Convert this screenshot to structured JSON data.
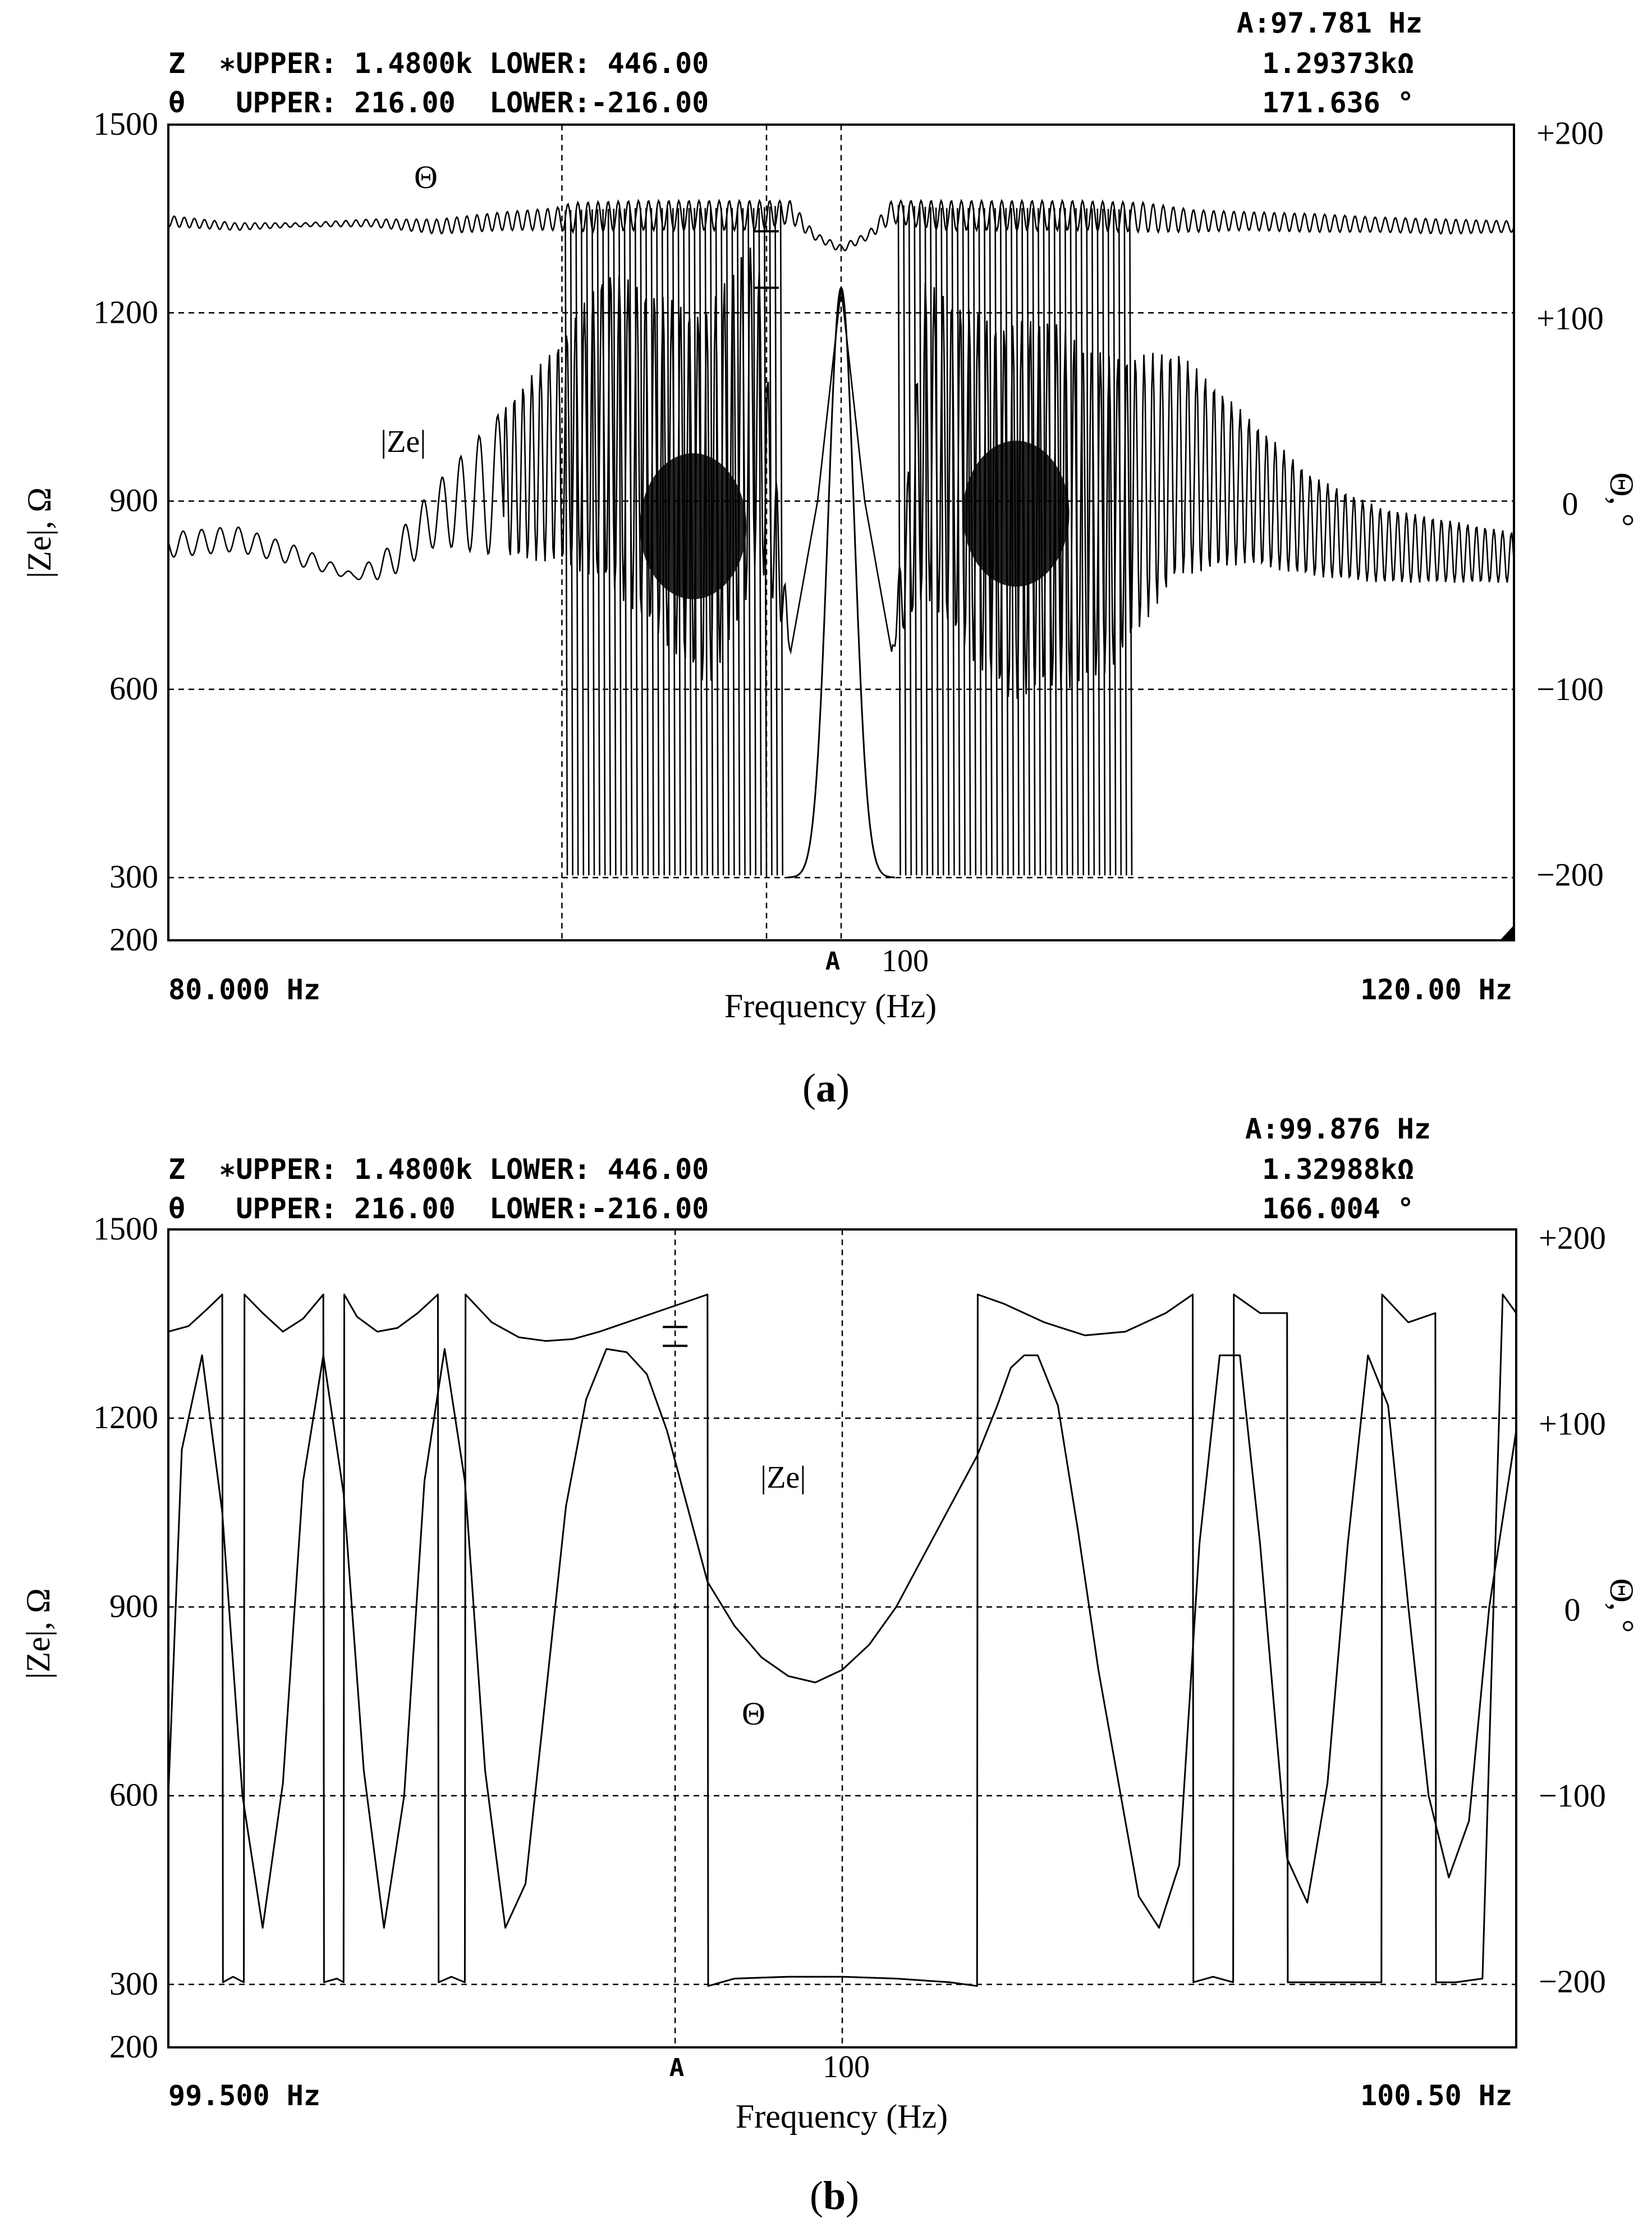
{
  "figure": {
    "panels": [
      {
        "caption_letter": "a",
        "cursor_readout": "A:97.781 Hz",
        "z_header": "Z  ∗UPPER: 1.4800k LOWER: 446.00",
        "z_value": "1.29373kΩ",
        "theta_header": "θ   UPPER: 216.00  LOWER:-216.00",
        "theta_value": "171.636 °",
        "x_start_label": "80.000 Hz",
        "x_end_label": "120.00 Hz",
        "x_center_label": "100",
        "cursor_marker": "A",
        "xlabel": "Frequency (Hz)",
        "ylabel_left": "|Ze|, Ω",
        "ylabel_right": "Θ, °",
        "trace_label_ze": "|Ze|",
        "trace_label_theta": "Θ"
      },
      {
        "caption_letter": "b",
        "cursor_readout": "A:99.876 Hz",
        "z_header": "Z  ∗UPPER: 1.4800k LOWER: 446.00",
        "z_value": "1.32988kΩ",
        "theta_header": "θ   UPPER: 216.00  LOWER:-216.00",
        "theta_value": "166.004 °",
        "x_start_label": "99.500 Hz",
        "x_end_label": "100.50 Hz",
        "x_center_label": "100",
        "cursor_marker": "A",
        "xlabel": "Frequency (Hz)",
        "ylabel_left": "|Ze|, Ω",
        "ylabel_right": "Θ, °",
        "trace_label_ze": "|Ze|",
        "trace_label_theta": "Θ"
      }
    ]
  },
  "chart_data": [
    {
      "type": "line",
      "xlim": [
        80,
        120
      ],
      "ylim_left": [
        200,
        1500
      ],
      "ylim_right": [
        -235,
        205
      ],
      "left_ticks": [
        1500,
        1200,
        900,
        600,
        300,
        200
      ],
      "left_tick_labels": [
        "1500",
        "1200",
        "900",
        "600",
        "300",
        "200"
      ],
      "right_ticks": [
        200,
        100,
        0,
        -100,
        -200
      ],
      "right_tick_labels": [
        "+200",
        "+100",
        "0",
        "−100",
        "−200"
      ],
      "grid_h": [
        1200,
        900,
        600,
        300
      ],
      "grid_v": [
        91.7,
        97.781,
        100
      ],
      "cursor_x": 97.781,
      "cursor_ticks_y": [
        1330,
        1240
      ],
      "grid": true,
      "series": [
        {
          "name": "Θ",
          "axis": "right",
          "x": [
            80,
            82,
            84,
            86,
            88,
            90,
            91.5,
            92,
            94,
            96,
            97.5,
            98.5,
            99.2,
            100,
            100.8,
            101.5,
            103,
            105,
            107,
            109,
            110.5,
            112,
            114,
            116,
            118,
            120
          ],
          "y": [
            153,
            150,
            151,
            152,
            150,
            153,
            154,
            155,
            156,
            156,
            156,
            158,
            145,
            138,
            145,
            158,
            156,
            156,
            156,
            155,
            153,
            153,
            152,
            151,
            150,
            150
          ],
          "oscillation_amp_deg": [
            3,
            2,
            1,
            2,
            4,
            5,
            6,
            8,
            8,
            8,
            8,
            6,
            2,
            2,
            2,
            6,
            8,
            8,
            8,
            8,
            6,
            5,
            5,
            4,
            4,
            3
          ],
          "fall_to_deg": [
            null,
            null,
            null,
            null,
            null,
            null,
            null,
            -200,
            -200,
            -200,
            -200,
            null,
            null,
            null,
            null,
            null,
            -200,
            -200,
            -200,
            -200,
            null,
            null,
            null,
            null,
            null,
            null
          ]
        },
        {
          "name": "|Ze|",
          "axis": "left",
          "x": [
            80,
            82,
            84,
            85.5,
            86.5,
            88,
            90,
            91.7,
            93,
            95,
            96,
            97,
            97.5,
            98.5,
            99.3,
            100,
            100.7,
            101.5,
            102.5,
            104,
            105,
            106,
            107,
            108,
            110,
            112,
            114,
            116,
            118,
            120
          ],
          "y": [
            830,
            840,
            810,
            780,
            800,
            880,
            930,
            980,
            1020,
            940,
            900,
            1000,
            1060,
            660,
            900,
            1240,
            900,
            660,
            1000,
            920,
            880,
            900,
            880,
            880,
            960,
            920,
            860,
            830,
            820,
            810
          ],
          "oscillation_amp_ohm": [
            20,
            20,
            15,
            5,
            25,
            50,
            120,
            180,
            250,
            280,
            300,
            300,
            250,
            0,
            0,
            0,
            0,
            0,
            250,
            280,
            300,
            300,
            280,
            250,
            180,
            120,
            80,
            60,
            50,
            40
          ]
        }
      ]
    },
    {
      "type": "line",
      "xlim": [
        99.5,
        100.5
      ],
      "ylim_left": [
        200,
        1500
      ],
      "ylim_right": [
        -235,
        205
      ],
      "left_ticks": [
        1500,
        1200,
        900,
        600,
        300,
        200
      ],
      "left_tick_labels": [
        "1500",
        "1200",
        "900",
        "600",
        "300",
        "200"
      ],
      "right_ticks": [
        200,
        100,
        0,
        -100,
        -200
      ],
      "right_tick_labels": [
        "+200",
        "+100",
        "0",
        "−100",
        "−200"
      ],
      "grid_h": [
        1200,
        900,
        600,
        300
      ],
      "grid_v": [
        99.876,
        100
      ],
      "cursor_x": 99.876,
      "cursor_ticks_y": [
        1345,
        1315
      ],
      "grid": true,
      "series": [
        {
          "name": "|Ze|",
          "axis": "left",
          "x": [
            99.5,
            99.51,
            99.525,
            99.54,
            99.555,
            99.57,
            99.585,
            99.6,
            99.615,
            99.63,
            99.645,
            99.66,
            99.675,
            99.69,
            99.705,
            99.72,
            99.735,
            99.75,
            99.765,
            99.78,
            99.795,
            99.81,
            99.825,
            99.84,
            99.855,
            99.87,
            99.885,
            99.9,
            99.92,
            99.94,
            99.96,
            99.98,
            100,
            100.02,
            100.04,
            100.06,
            100.08,
            100.1,
            100.115,
            100.125,
            100.135,
            100.145,
            100.16,
            100.175,
            100.19,
            100.205,
            100.22,
            100.235,
            100.25,
            100.265,
            100.28,
            100.295,
            100.31,
            100.33,
            100.345,
            100.36,
            100.375,
            100.39,
            100.405,
            100.42,
            100.435,
            100.45,
            100.465,
            100.48,
            100.5
          ],
          "y": [
            600,
            1150,
            1300,
            1050,
            600,
            390,
            620,
            1100,
            1300,
            1080,
            640,
            390,
            600,
            1100,
            1310,
            1100,
            640,
            390,
            460,
            760,
            1060,
            1230,
            1310,
            1305,
            1270,
            1180,
            1060,
            940,
            870,
            820,
            790,
            780,
            800,
            840,
            900,
            980,
            1060,
            1140,
            1220,
            1280,
            1300,
            1300,
            1220,
            1020,
            800,
            620,
            440,
            390,
            490,
            1000,
            1300,
            1300,
            1000,
            500,
            430,
            620,
            1000,
            1300,
            1220,
            900,
            600,
            470,
            560,
            900,
            1180
          ]
        },
        {
          "name": "Θ",
          "axis": "right",
          "x": [
            99.5,
            99.515,
            99.53,
            99.54,
            99.5405,
            99.548,
            99.556,
            99.5565,
            99.57,
            99.585,
            99.6,
            99.615,
            99.6155,
            99.625,
            99.63,
            99.6305,
            99.64,
            99.655,
            99.67,
            99.685,
            99.7,
            99.7005,
            99.71,
            99.72,
            99.7205,
            99.74,
            99.76,
            99.78,
            99.8,
            99.82,
            99.84,
            99.86,
            99.88,
            99.9,
            99.9005,
            99.92,
            99.96,
            100,
            100.04,
            100.08,
            100.1,
            100.1005,
            100.12,
            100.15,
            100.18,
            100.21,
            100.24,
            100.26,
            100.2605,
            100.275,
            100.29,
            100.2905,
            100.31,
            100.33,
            100.3305,
            100.35,
            100.375,
            100.4,
            100.4005,
            100.42,
            100.44,
            100.4405,
            100.455,
            100.475,
            100.49,
            100.5
          ],
          "y": [
            150,
            153,
            163,
            170,
            -200,
            -197,
            -200,
            170,
            160,
            150,
            157,
            170,
            -200,
            -198,
            -200,
            170,
            158,
            150,
            152,
            160,
            170,
            -200,
            -197,
            -200,
            170,
            155,
            147,
            145,
            146,
            150,
            155,
            160,
            165,
            170,
            -202,
            -198,
            -197,
            -197,
            -198,
            -200,
            -202,
            170,
            165,
            155,
            148,
            150,
            160,
            170,
            -200,
            -197,
            -200,
            170,
            160,
            160,
            -200,
            -200,
            -200,
            -200,
            170,
            155,
            160,
            -200,
            -200,
            -198,
            170,
            160
          ]
        }
      ]
    }
  ]
}
